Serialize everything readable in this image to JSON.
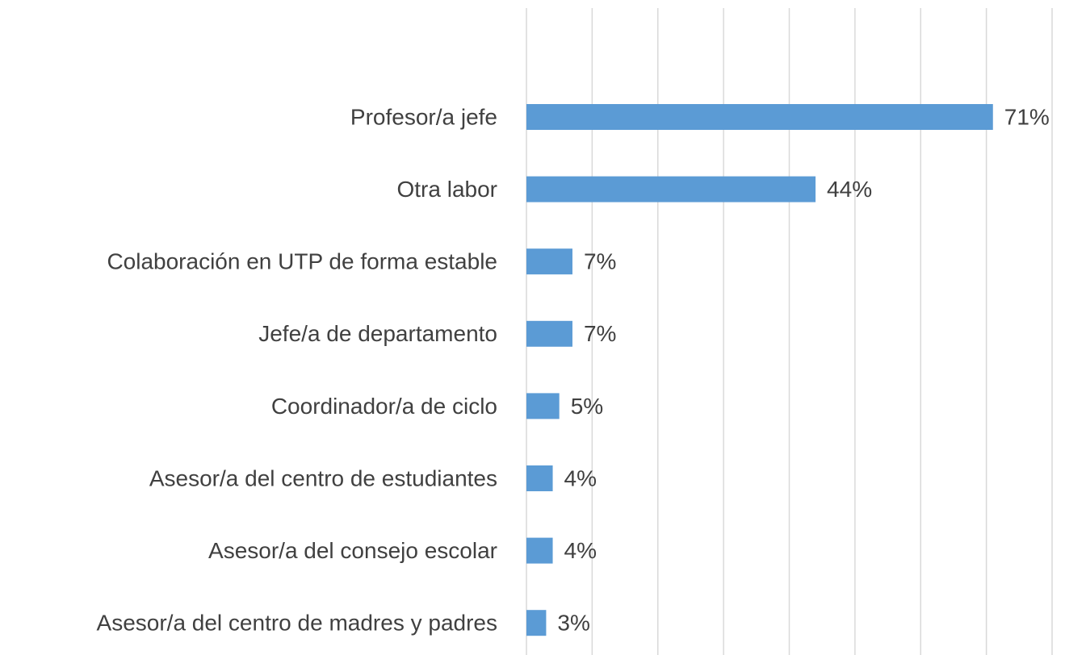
{
  "chart_data": {
    "type": "bar",
    "orientation": "horizontal",
    "categories": [
      "Profesor/a jefe",
      "Otra labor",
      "Colaboración en UTP de forma estable",
      "Jefe/a de departamento",
      "Coordinador/a de ciclo",
      "Asesor/a del centro de estudiantes",
      "Asesor/a del consejo escolar",
      "Asesor/a del centro de madres y padres"
    ],
    "values": [
      71,
      44,
      7,
      7,
      5,
      4,
      4,
      3
    ],
    "value_labels": [
      "71%",
      "44%",
      "7%",
      "7%",
      "5%",
      "4%",
      "4%",
      "3%"
    ],
    "color": "#5b9bd5",
    "xlim": [
      0,
      80
    ],
    "xticks": [
      0,
      10,
      20,
      30,
      40,
      50,
      60,
      70,
      80
    ],
    "grid": true
  }
}
